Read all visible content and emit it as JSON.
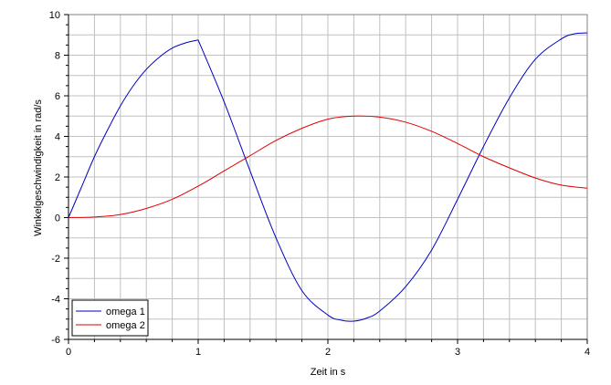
{
  "chart_data": {
    "type": "line",
    "xlabel": "Zeit in s",
    "ylabel": "Winkelgeschwindigkeit in rad/s",
    "xlim": [
      0,
      4
    ],
    "ylim": [
      -6,
      10
    ],
    "x_ticks": [
      0,
      1,
      2,
      3,
      4
    ],
    "y_ticks": [
      -6,
      -4,
      -2,
      0,
      2,
      4,
      6,
      8,
      10
    ],
    "x_tick_labels": [
      "0",
      "1",
      "2",
      "3",
      "4"
    ],
    "y_tick_labels": [
      "-6",
      "-4",
      "-2",
      "0",
      "2",
      "4",
      "6",
      "8",
      "10"
    ],
    "grid": true,
    "legend_position": "bottom-left",
    "series": [
      {
        "name": "omega 1",
        "color": "#0000c0",
        "x": [
          0,
          0.1,
          0.2,
          0.3,
          0.4,
          0.5,
          0.6,
          0.7,
          0.8,
          0.9,
          1.0,
          1.2,
          1.4,
          1.6,
          1.8,
          2.0,
          2.1,
          2.2,
          2.3,
          2.4,
          2.6,
          2.8,
          3.0,
          3.2,
          3.4,
          3.6,
          3.8,
          3.9,
          4.0
        ],
        "y": [
          0,
          1.5,
          3.0,
          4.3,
          5.5,
          6.5,
          7.3,
          7.9,
          8.35,
          8.6,
          8.75,
          5.7,
          2.3,
          -1.0,
          -3.6,
          -4.8,
          -5.05,
          -5.1,
          -4.95,
          -4.6,
          -3.4,
          -1.6,
          0.9,
          3.5,
          5.9,
          7.8,
          8.8,
          9.05,
          9.1
        ]
      },
      {
        "name": "omega 2",
        "color": "#e00000",
        "x": [
          0,
          0.2,
          0.4,
          0.6,
          0.8,
          1.0,
          1.2,
          1.4,
          1.6,
          1.8,
          2.0,
          2.2,
          2.4,
          2.6,
          2.8,
          3.0,
          3.2,
          3.4,
          3.6,
          3.8,
          4.0
        ],
        "y": [
          0,
          0.03,
          0.15,
          0.45,
          0.9,
          1.55,
          2.3,
          3.05,
          3.8,
          4.4,
          4.85,
          5.0,
          4.95,
          4.7,
          4.25,
          3.65,
          3.0,
          2.45,
          1.95,
          1.6,
          1.45
        ]
      }
    ]
  }
}
